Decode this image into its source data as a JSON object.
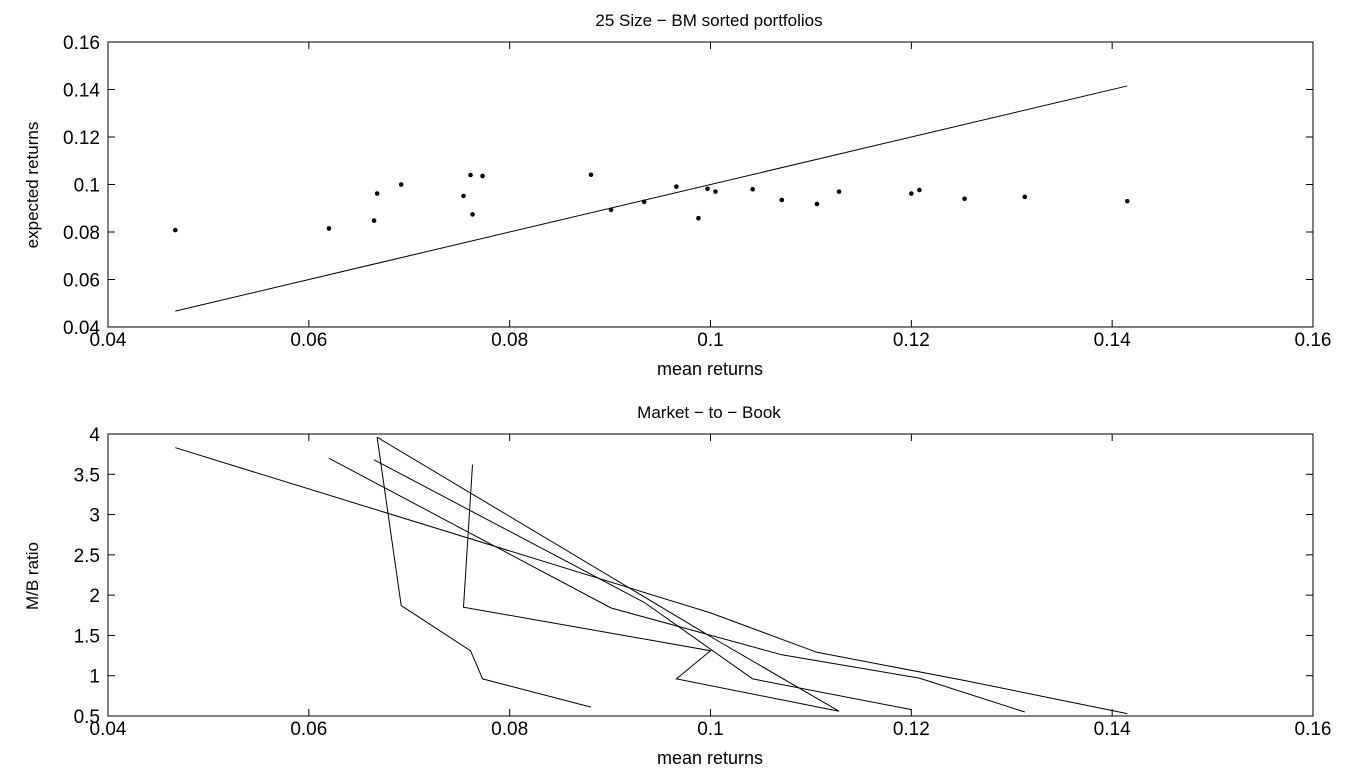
{
  "chart_data": [
    {
      "type": "scatter",
      "title": "25 Size − BM sorted portfolios",
      "xlabel": "mean returns",
      "ylabel": "expected returns",
      "xlim": [
        0.04,
        0.16
      ],
      "ylim": [
        0.04,
        0.16
      ],
      "xticks": [
        "0.04",
        "0.06",
        "0.08",
        "0.1",
        "0.12",
        "0.14",
        "0.16"
      ],
      "yticks": [
        "0.04",
        "0.06",
        "0.08",
        "0.1",
        "0.12",
        "0.14",
        "0.16"
      ],
      "xtick_values": [
        0.04,
        0.06,
        0.08,
        0.1,
        0.12,
        0.14,
        0.16
      ],
      "ytick_values": [
        0.04,
        0.06,
        0.08,
        0.1,
        0.12,
        0.14,
        0.16
      ],
      "grid": false,
      "reference_line": {
        "x": [
          0.0467,
          0.1415
        ],
        "y": [
          0.0467,
          0.1415
        ]
      },
      "series": [
        {
          "points": [
            [
              0.0467,
              0.0808
            ],
            [
              0.062,
              0.0815
            ],
            [
              0.0665,
              0.0848
            ],
            [
              0.0668,
              0.0962
            ],
            [
              0.0692,
              0.1
            ],
            [
              0.0754,
              0.0952
            ],
            [
              0.0761,
              0.104
            ],
            [
              0.0763,
              0.0874
            ],
            [
              0.0773,
              0.1036
            ],
            [
              0.0881,
              0.1041
            ],
            [
              0.0901,
              0.0893
            ],
            [
              0.0934,
              0.0927
            ],
            [
              0.0966,
              0.0991
            ],
            [
              0.0988,
              0.0858
            ],
            [
              0.0997,
              0.0982
            ],
            [
              0.1005,
              0.097
            ],
            [
              0.1042,
              0.098
            ],
            [
              0.1071,
              0.0935
            ],
            [
              0.1106,
              0.0918
            ],
            [
              0.1128,
              0.097
            ],
            [
              0.12,
              0.0962
            ],
            [
              0.1208,
              0.0977
            ],
            [
              0.1253,
              0.094
            ],
            [
              0.1313,
              0.0948
            ],
            [
              0.1415,
              0.093
            ]
          ]
        }
      ]
    },
    {
      "type": "line",
      "title": "Market − to − Book",
      "xlabel": "mean returns",
      "ylabel": "M/B ratio",
      "xlim": [
        0.04,
        0.16
      ],
      "ylim": [
        0.5,
        4
      ],
      "xticks": [
        "0.04",
        "0.06",
        "0.08",
        "0.1",
        "0.12",
        "0.14",
        "0.16"
      ],
      "yticks": [
        "0.5",
        "1",
        "1.5",
        "2",
        "2.5",
        "3",
        "3.5",
        "4"
      ],
      "xtick_values": [
        0.04,
        0.06,
        0.08,
        0.1,
        0.12,
        0.14,
        0.16
      ],
      "ytick_values": [
        0.5,
        1,
        1.5,
        2,
        2.5,
        3,
        3.5,
        4
      ],
      "grid": false,
      "series": [
        {
          "points": [
            [
              0.0467,
              3.83
            ],
            [
              0.1,
              1.78
            ],
            [
              0.1106,
              1.29
            ],
            [
              0.1253,
              0.94
            ],
            [
              0.1415,
              0.53
            ]
          ]
        },
        {
          "points": [
            [
              0.062,
              3.7
            ],
            [
              0.0901,
              1.84
            ],
            [
              0.1071,
              1.26
            ],
            [
              0.1208,
              0.97
            ],
            [
              0.1313,
              0.55
            ]
          ]
        },
        {
          "points": [
            [
              0.0665,
              3.68
            ],
            [
              0.0934,
              1.91
            ],
            [
              0.1042,
              0.96
            ],
            [
              0.12,
              0.58
            ]
          ]
        },
        {
          "points": [
            [
              0.0668,
              3.96
            ],
            [
              0.1005,
              1.45
            ],
            [
              0.1128,
              0.56
            ],
            [
              0.0966,
              0.96
            ],
            [
              0.1,
              1.31
            ],
            [
              0.0754,
              1.85
            ],
            [
              0.0763,
              3.62
            ]
          ]
        },
        {
          "points": [
            [
              0.0668,
              3.96
            ],
            [
              0.0692,
              1.87
            ],
            [
              0.0761,
              1.31
            ],
            [
              0.0773,
              0.96
            ],
            [
              0.0881,
              0.61
            ]
          ]
        }
      ]
    }
  ]
}
